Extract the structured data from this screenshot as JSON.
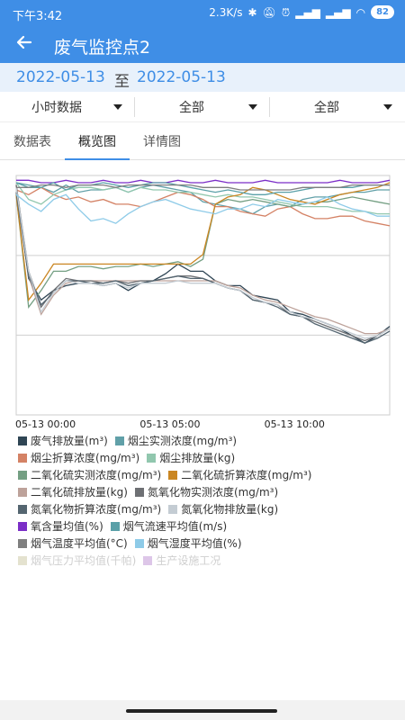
{
  "status_bar": {
    "time": "下午3:42",
    "net_speed": "2.3K/s",
    "battery": "82"
  },
  "app_bar": {
    "back_icon": "arrow-left",
    "title": "废气监控点2"
  },
  "date_range": {
    "start": "2022-05-13",
    "separator": "至",
    "end": "2022-05-13"
  },
  "filters": [
    {
      "label": "小时数据"
    },
    {
      "label": "全部"
    },
    {
      "label": "全部"
    }
  ],
  "tabs": [
    {
      "label": "数据表",
      "active": false
    },
    {
      "label": "概览图",
      "active": true
    },
    {
      "label": "详情图",
      "active": false
    }
  ],
  "chart_data": {
    "type": "line",
    "x_tick_labels": [
      "05-13 00:00",
      "05-13 05:00",
      "05-13 10:00"
    ],
    "x_hours": [
      0,
      0.5,
      1,
      1.5,
      2,
      2.5,
      3,
      3.5,
      4,
      4.5,
      5,
      5.5,
      6,
      6.5,
      7,
      7.5,
      8,
      8.5,
      9,
      9.5,
      10,
      10.5,
      11,
      11.5,
      12,
      12.5,
      13,
      13.5,
      14,
      14.5,
      15
    ],
    "ylim": [
      0,
      100
    ],
    "grid": true,
    "series": [
      {
        "name": "废气排放量(m³)",
        "color": "#2f4554",
        "values": [
          96,
          57,
          48,
          52,
          54,
          55,
          55,
          54,
          55,
          52,
          55,
          56,
          59,
          63,
          60,
          60,
          56,
          54,
          54,
          50,
          49,
          48,
          43,
          42,
          40,
          38,
          36,
          33,
          30,
          33,
          37
        ]
      },
      {
        "name": "烟尘实测浓度(mg/m³)",
        "color": "#61a0a8",
        "values": [
          97,
          96,
          95,
          93,
          96,
          93,
          94,
          94,
          95,
          93,
          95,
          96,
          95,
          94,
          93,
          89,
          88,
          87,
          86,
          84,
          87,
          88,
          87,
          90,
          91,
          91,
          92,
          93,
          93,
          94,
          94
        ]
      },
      {
        "name": "烟尘折算浓度(mg/m³)",
        "color": "#d48265",
        "values": [
          94,
          92,
          95,
          92,
          90,
          91,
          89,
          90,
          88,
          88,
          87,
          89,
          91,
          93,
          92,
          90,
          87,
          87,
          85,
          84,
          83,
          86,
          87,
          84,
          82,
          82,
          83,
          83,
          81,
          80,
          79
        ]
      },
      {
        "name": "烟尘排放量(kg)",
        "color": "#91c7ae",
        "values": [
          97,
          90,
          88,
          92,
          94,
          95,
          95,
          94,
          95,
          93,
          95,
          94,
          94,
          93,
          93,
          92,
          91,
          92,
          91,
          91,
          90,
          89,
          88,
          87,
          87,
          87,
          86,
          85,
          85,
          84,
          84
        ]
      },
      {
        "name": "二氧化硫实测浓度(mg/m³)",
        "color": "#749f83",
        "values": [
          92,
          45,
          52,
          60,
          60,
          62,
          62,
          61,
          62,
          62,
          63,
          62,
          63,
          64,
          62,
          65,
          88,
          90,
          89,
          90,
          89,
          88,
          87,
          88,
          89,
          89,
          90,
          91,
          90,
          89,
          88
        ]
      },
      {
        "name": "二氧化硫折算浓度(mg/m³)",
        "color": "#ca8622",
        "values": [
          92,
          48,
          55,
          63,
          63,
          63,
          63,
          63,
          63,
          63,
          63,
          63,
          63,
          63,
          63,
          67,
          88,
          91,
          92,
          95,
          94,
          92,
          90,
          89,
          88,
          90,
          92,
          93,
          94,
          95,
          97
        ]
      },
      {
        "name": "二氧化硫排放量(kg)",
        "color": "#bda29a",
        "values": [
          96,
          58,
          42,
          50,
          55,
          56,
          56,
          56,
          56,
          56,
          56,
          56,
          56,
          56,
          56,
          56,
          56,
          54,
          53,
          50,
          48,
          47,
          45,
          43,
          41,
          40,
          38,
          36,
          34,
          34,
          36
        ]
      },
      {
        "name": "氮氧化物实测浓度(mg/m³)",
        "color": "#6e7074",
        "values": [
          96,
          60,
          45,
          52,
          57,
          56,
          56,
          55,
          56,
          55,
          56,
          56,
          57,
          58,
          58,
          57,
          55,
          53,
          52,
          48,
          47,
          46,
          42,
          41,
          39,
          37,
          35,
          33,
          31,
          33,
          36
        ]
      },
      {
        "name": "氮氧化物折算浓度(mg/m³)",
        "color": "#546570",
        "values": [
          93,
          58,
          46,
          51,
          56,
          56,
          55,
          55,
          56,
          54,
          55,
          56,
          57,
          58,
          57,
          57,
          55,
          53,
          52,
          48,
          47,
          45,
          42,
          41,
          38,
          36,
          34,
          32,
          30,
          32,
          35
        ]
      },
      {
        "name": "氮氧化物排放量(kg)",
        "color": "#c4ccd3",
        "values": [
          95,
          60,
          43,
          51,
          56,
          55,
          55,
          54,
          55,
          53,
          55,
          55,
          55,
          56,
          55,
          55,
          55,
          53,
          52,
          49,
          47,
          46,
          43,
          41,
          40,
          38,
          36,
          34,
          32,
          33,
          36
        ]
      },
      {
        "name": "氧含量均值(%)",
        "color": "#7b2ec7",
        "values": [
          98,
          98,
          97,
          97,
          98,
          97,
          97,
          98,
          97,
          97,
          98,
          97,
          97,
          98,
          97,
          97,
          98,
          97,
          97,
          97,
          98,
          97,
          97,
          97,
          97,
          97,
          98,
          97,
          97,
          97,
          98
        ]
      },
      {
        "name": "烟气流速平均值(m/s)",
        "color": "#5aa0a8",
        "values": [
          97,
          95,
          95,
          97,
          94,
          96,
          96,
          97,
          96,
          95,
          96,
          97,
          97,
          96,
          95,
          94,
          93,
          94,
          93,
          92,
          92,
          93,
          93,
          94,
          95,
          95,
          95,
          95,
          96,
          96,
          96
        ]
      },
      {
        "name": "烟气温度平均值(°C)",
        "color": "#7f7f7f",
        "values": [
          95,
          95,
          96,
          96,
          95,
          96,
          96,
          96,
          95,
          96,
          96,
          96,
          96,
          96,
          96,
          95,
          95,
          95,
          94,
          94,
          94,
          94,
          94,
          95,
          95,
          95,
          95,
          96,
          96,
          96,
          96
        ]
      },
      {
        "name": "烟气湿度平均值(%)",
        "color": "#8ecbe8",
        "values": [
          92,
          88,
          85,
          90,
          92,
          86,
          81,
          82,
          80,
          84,
          87,
          89,
          90,
          88,
          86,
          85,
          84,
          86,
          86,
          88,
          87,
          90,
          89,
          88,
          89,
          91,
          88,
          86,
          85,
          83,
          83
        ]
      },
      {
        "name": "烟气压力平均值(千帕)",
        "color": "#e4e2cf",
        "disabled": true
      },
      {
        "name": "生产设施工况",
        "color": "#ddc6e8",
        "disabled": true
      }
    ]
  }
}
